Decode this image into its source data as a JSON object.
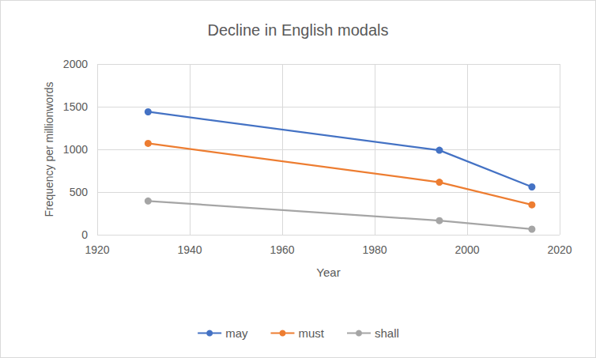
{
  "chart_data": {
    "type": "line",
    "title": "Decline in English modals",
    "x_label": "Year",
    "y_label": "Frequency per millionwords",
    "x": [
      1931,
      1994,
      2014
    ],
    "series": [
      {
        "name": "may",
        "color": "#4472c4",
        "values": [
          1440,
          990,
          560
        ]
      },
      {
        "name": "must",
        "color": "#ed7d31",
        "values": [
          1070,
          615,
          350
        ]
      },
      {
        "name": "shall",
        "color": "#a5a5a5",
        "values": [
          395,
          165,
          65
        ]
      }
    ],
    "xlim": [
      1920,
      2020
    ],
    "xticks": [
      1920,
      1940,
      1960,
      1980,
      2000,
      2020
    ],
    "ylim": [
      0,
      2000
    ],
    "yticks": [
      0,
      500,
      1000,
      1500,
      2000
    ],
    "grid": true,
    "legend": "bottom",
    "marker": "circle"
  }
}
